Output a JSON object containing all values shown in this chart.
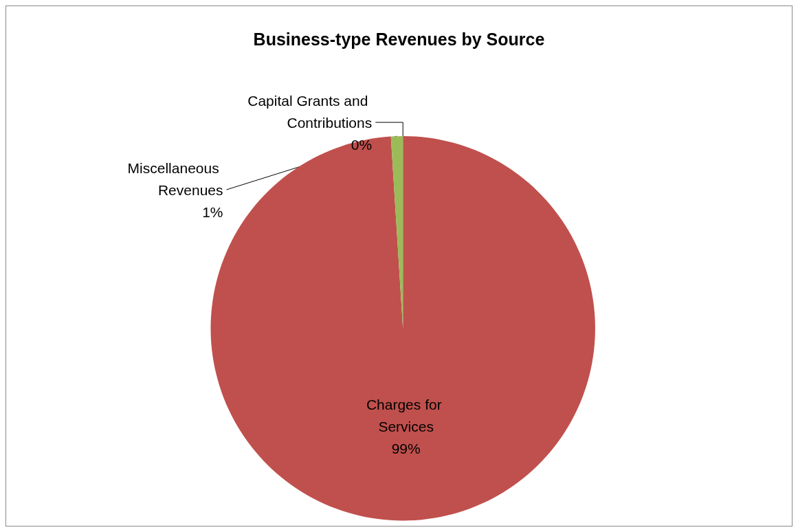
{
  "chart_data": {
    "type": "pie",
    "title": "Business-type Revenues by Source",
    "categories": [
      "Charges for Services",
      "Miscellaneous Revenues",
      "Capital Grants and Contributions"
    ],
    "values": [
      99,
      1,
      0
    ],
    "value_labels": [
      "99%",
      "1%",
      "0%"
    ],
    "colors": [
      "#c0504d",
      "#9bbb59",
      "#4f81bd"
    ],
    "legend": false
  }
}
